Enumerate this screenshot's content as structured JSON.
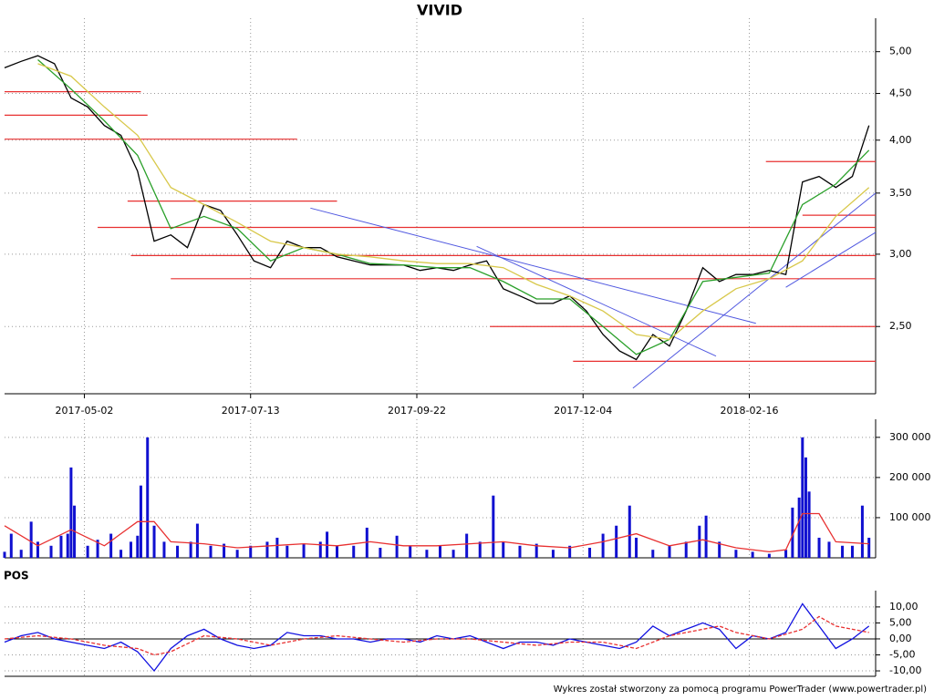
{
  "footer": "Wykres został stworzony za pomocą programu PowerTrader (www.powertrader.pl)",
  "chart_data": [
    {
      "type": "line",
      "title": "VIVID",
      "log_scale": true,
      "grid": true,
      "xlim": [
        0,
        262
      ],
      "ylim": [
        2.11,
        5.44
      ],
      "xticks": [
        {
          "value": 24,
          "label": "2017-05-02"
        },
        {
          "value": 74,
          "label": "2017-07-13"
        },
        {
          "value": 124,
          "label": "2017-09-22"
        },
        {
          "value": 174,
          "label": "2017-12-04"
        },
        {
          "value": 224,
          "label": "2018-02-16"
        }
      ],
      "yticks": [
        {
          "value": 2.5,
          "label": "2,50"
        },
        {
          "value": 3,
          "label": "3,00"
        },
        {
          "value": 3.5,
          "label": "3,50"
        },
        {
          "value": 4,
          "label": "4,00"
        },
        {
          "value": 4.5,
          "label": "4,50"
        },
        {
          "value": 5,
          "label": "5,00"
        }
      ],
      "series": [
        {
          "color": "#000000",
          "x": [
            0,
            5,
            10,
            15,
            20,
            25,
            30,
            35,
            40,
            45,
            50,
            55,
            60,
            65,
            70,
            75,
            80,
            85,
            90,
            95,
            100,
            105,
            110,
            115,
            120,
            125,
            130,
            135,
            140,
            145,
            150,
            155,
            160,
            165,
            170,
            175,
            180,
            185,
            190,
            195,
            200,
            205,
            210,
            215,
            220,
            225,
            230,
            235,
            240,
            245,
            250,
            255,
            260
          ],
          "values": [
            4.8,
            4.88,
            4.95,
            4.85,
            4.45,
            4.35,
            4.15,
            4.05,
            3.7,
            3.1,
            3.15,
            3.05,
            3.4,
            3.35,
            3.15,
            2.95,
            2.9,
            3.1,
            3.05,
            3.05,
            2.98,
            2.95,
            2.92,
            2.92,
            2.92,
            2.88,
            2.9,
            2.88,
            2.92,
            2.95,
            2.75,
            2.7,
            2.65,
            2.65,
            2.7,
            2.6,
            2.45,
            2.35,
            2.3,
            2.45,
            2.38,
            2.6,
            2.9,
            2.8,
            2.85,
            2.85,
            2.88,
            2.85,
            3.6,
            3.65,
            3.55,
            3.65,
            4.15
          ]
        },
        {
          "color": "#2aa02a",
          "x": [
            10,
            20,
            30,
            40,
            50,
            60,
            70,
            80,
            90,
            100,
            110,
            120,
            130,
            140,
            150,
            160,
            170,
            180,
            190,
            200,
            210,
            220,
            230,
            240,
            250,
            260
          ],
          "values": [
            4.9,
            4.55,
            4.2,
            3.85,
            3.2,
            3.3,
            3.2,
            2.95,
            3.05,
            3.0,
            2.93,
            2.92,
            2.9,
            2.9,
            2.8,
            2.68,
            2.68,
            2.5,
            2.33,
            2.42,
            2.8,
            2.83,
            2.86,
            3.4,
            3.58,
            3.9
          ]
        },
        {
          "color": "#d8c84a",
          "x": [
            10,
            20,
            30,
            40,
            50,
            60,
            70,
            80,
            90,
            100,
            110,
            120,
            130,
            140,
            150,
            160,
            170,
            180,
            190,
            200,
            210,
            220,
            230,
            240,
            250,
            260
          ],
          "values": [
            4.85,
            4.7,
            4.35,
            4.05,
            3.55,
            3.4,
            3.25,
            3.1,
            3.05,
            3.0,
            2.98,
            2.95,
            2.93,
            2.93,
            2.9,
            2.78,
            2.7,
            2.6,
            2.45,
            2.42,
            2.6,
            2.75,
            2.82,
            2.95,
            3.3,
            3.55
          ]
        }
      ],
      "levels_color": "#e83030",
      "levels": [
        {
          "x": [
            0,
            41
          ],
          "y": 4.52
        },
        {
          "x": [
            0,
            43
          ],
          "y": 4.26
        },
        {
          "x": [
            0,
            88
          ],
          "y": 4.01
        },
        {
          "x": [
            37,
            100
          ],
          "y": 3.43
        },
        {
          "x": [
            28,
            262
          ],
          "y": 3.21
        },
        {
          "x": [
            38,
            262
          ],
          "y": 2.99
        },
        {
          "x": [
            50,
            262
          ],
          "y": 2.82
        },
        {
          "x": [
            146,
            262
          ],
          "y": 2.5
        },
        {
          "x": [
            171,
            262
          ],
          "y": 2.29
        },
        {
          "x": [
            229,
            262
          ],
          "y": 3.79
        },
        {
          "x": [
            240,
            262
          ],
          "y": 3.31
        }
      ],
      "trend_color": "#5058e0",
      "trends": [
        {
          "x": [
            92,
            226
          ],
          "y": [
            3.37,
            2.52
          ]
        },
        {
          "x": [
            142,
            214
          ],
          "y": [
            3.06,
            2.32
          ]
        },
        {
          "x": [
            189,
            262
          ],
          "y": [
            2.14,
            3.5
          ]
        },
        {
          "x": [
            235,
            262
          ],
          "y": [
            2.76,
            3.17
          ]
        }
      ]
    },
    {
      "type": "bar",
      "xlim": [
        0,
        262
      ],
      "ylim": [
        0,
        345000
      ],
      "grid": true,
      "yticks": [
        {
          "value": 100000,
          "label": "100 000"
        },
        {
          "value": 200000,
          "label": "200 000"
        },
        {
          "value": 300000,
          "label": "300 000"
        }
      ],
      "xticks": [
        24,
        74,
        124,
        174,
        224
      ],
      "color": "#1010d0",
      "x": [
        0,
        2,
        5,
        8,
        10,
        14,
        17,
        19,
        20,
        21,
        25,
        28,
        32,
        35,
        38,
        40,
        41,
        43,
        45,
        48,
        52,
        56,
        58,
        62,
        66,
        70,
        74,
        79,
        82,
        85,
        90,
        95,
        97,
        100,
        105,
        109,
        113,
        118,
        122,
        127,
        131,
        135,
        139,
        143,
        147,
        150,
        155,
        160,
        165,
        170,
        176,
        180,
        184,
        188,
        190,
        195,
        200,
        205,
        209,
        211,
        215,
        220,
        225,
        230,
        235,
        237,
        239,
        240,
        241,
        242,
        245,
        248,
        252,
        255,
        258,
        260
      ],
      "values": [
        15000,
        60000,
        20000,
        90000,
        40000,
        30000,
        55000,
        60000,
        225000,
        130000,
        30000,
        45000,
        60000,
        20000,
        40000,
        55000,
        180000,
        300000,
        80000,
        40000,
        30000,
        40000,
        85000,
        30000,
        35000,
        20000,
        30000,
        40000,
        50000,
        30000,
        35000,
        40000,
        65000,
        30000,
        30000,
        75000,
        25000,
        55000,
        30000,
        20000,
        30000,
        20000,
        60000,
        40000,
        155000,
        40000,
        30000,
        35000,
        20000,
        30000,
        25000,
        60000,
        80000,
        130000,
        50000,
        20000,
        30000,
        40000,
        80000,
        105000,
        40000,
        20000,
        15000,
        10000,
        20000,
        125000,
        150000,
        300000,
        250000,
        165000,
        50000,
        40000,
        30000,
        30000,
        130000,
        50000
      ],
      "series": [
        {
          "color": "#e83030",
          "axis": "y",
          "x": [
            0,
            10,
            20,
            30,
            40,
            45,
            50,
            60,
            70,
            80,
            90,
            100,
            110,
            120,
            130,
            140,
            150,
            160,
            170,
            180,
            190,
            200,
            210,
            220,
            230,
            235,
            240,
            245,
            250,
            260
          ],
          "values": [
            80000,
            30000,
            70000,
            30000,
            90000,
            90000,
            40000,
            35000,
            25000,
            30000,
            35000,
            30000,
            40000,
            30000,
            30000,
            35000,
            40000,
            30000,
            25000,
            40000,
            60000,
            30000,
            45000,
            25000,
            15000,
            20000,
            110000,
            110000,
            40000,
            35000
          ]
        }
      ]
    },
    {
      "type": "line",
      "title": "POS",
      "xlim": [
        0,
        262
      ],
      "ylim": [
        -11.7,
        15.1
      ],
      "grid": true,
      "yticks": [
        {
          "value": -10,
          "label": "-10,00"
        },
        {
          "value": -5,
          "label": "-5,00"
        },
        {
          "value": 0,
          "label": "0,00"
        },
        {
          "value": 5,
          "label": "5,00"
        },
        {
          "value": 10,
          "label": "10,00"
        }
      ],
      "xticks": [
        24,
        74,
        124,
        174,
        224
      ],
      "series": [
        {
          "color": "#1010e0",
          "x": [
            0,
            5,
            10,
            15,
            20,
            25,
            30,
            35,
            40,
            45,
            50,
            55,
            60,
            65,
            70,
            75,
            80,
            85,
            90,
            95,
            100,
            105,
            110,
            115,
            120,
            125,
            130,
            135,
            140,
            145,
            150,
            155,
            160,
            165,
            170,
            175,
            180,
            185,
            190,
            195,
            200,
            205,
            210,
            215,
            220,
            225,
            230,
            235,
            240,
            245,
            250,
            255,
            260
          ],
          "values": [
            -1,
            1,
            2,
            0,
            -1,
            -2,
            -3,
            -1,
            -4,
            -10,
            -3,
            1,
            3,
            0,
            -2,
            -3,
            -2,
            2,
            1,
            1,
            0,
            0,
            -1,
            0,
            0,
            -1,
            1,
            0,
            1,
            -1,
            -3,
            -1,
            -1,
            -2,
            0,
            -1,
            -2,
            -3,
            -1,
            4,
            1,
            3,
            5,
            3,
            -3,
            1,
            0,
            2,
            11,
            4,
            -3,
            0,
            4
          ]
        },
        {
          "color": "#e83030",
          "dashed": true,
          "x": [
            0,
            10,
            20,
            30,
            40,
            45,
            50,
            60,
            70,
            80,
            90,
            100,
            110,
            120,
            130,
            140,
            150,
            160,
            170,
            180,
            190,
            200,
            210,
            215,
            220,
            230,
            240,
            245,
            250,
            260
          ],
          "values": [
            0,
            1,
            0,
            -2,
            -3,
            -5,
            -4,
            1,
            0,
            -2,
            0,
            1,
            0,
            -1,
            0,
            0,
            -1,
            -2,
            -1,
            -1,
            -3,
            1,
            3,
            4,
            2,
            0,
            3,
            7,
            4,
            2
          ]
        }
      ]
    }
  ]
}
